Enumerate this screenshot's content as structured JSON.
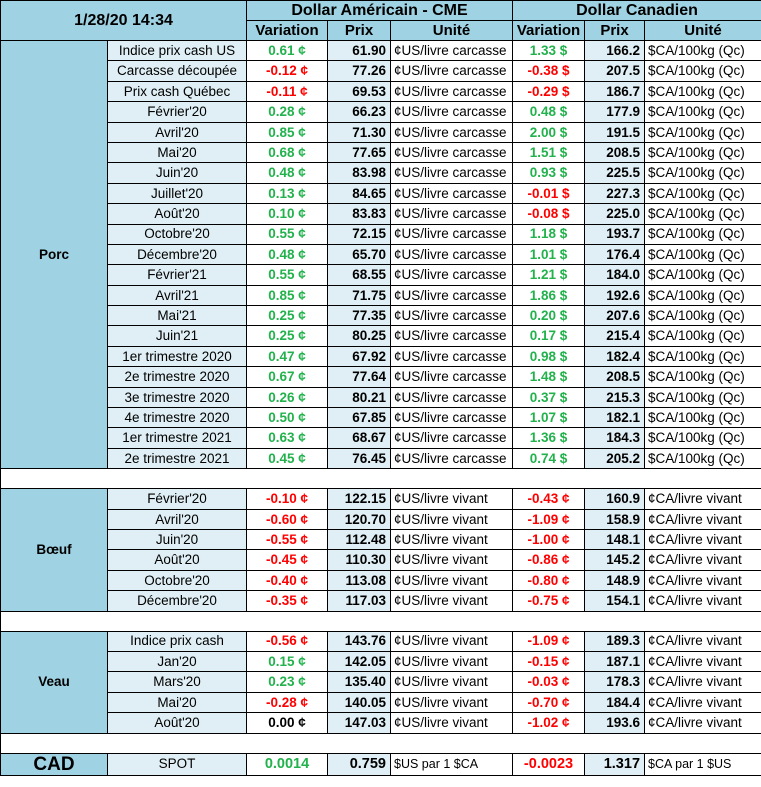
{
  "header": {
    "timestamp": "1/28/20 14:34",
    "us_title": "Dollar Américain - CME",
    "ca_title": "Dollar Canadien",
    "col_variation": "Variation",
    "col_prix": "Prix",
    "col_unite": "Unité"
  },
  "colors": {
    "header_blue": "#9fd2e2",
    "row_light": "#dfeff5",
    "positive": "#22b24c",
    "negative": "#ff0000"
  },
  "sections": [
    {
      "name": "Porc",
      "rows": [
        {
          "label": "Indice prix cash US",
          "us_var": "0.61 ¢",
          "us_sign": "pos",
          "us_price": "61.90",
          "us_unit": "¢US/livre carcasse",
          "ca_var": "1.33 $",
          "ca_sign": "pos",
          "ca_price": "166.2",
          "ca_unit": "$CA/100kg (Qc)"
        },
        {
          "label": "Carcasse découpée",
          "us_var": "-0.12 ¢",
          "us_sign": "neg",
          "us_price": "77.26",
          "us_unit": "¢US/livre carcasse",
          "ca_var": "-0.38 $",
          "ca_sign": "neg",
          "ca_price": "207.5",
          "ca_unit": "$CA/100kg (Qc)"
        },
        {
          "label": "Prix cash Québec",
          "us_var": "-0.11 ¢",
          "us_sign": "neg",
          "us_price": "69.53",
          "us_unit": "¢US/livre carcasse",
          "ca_var": "-0.29 $",
          "ca_sign": "neg",
          "ca_price": "186.7",
          "ca_unit": "$CA/100kg (Qc)"
        },
        {
          "label": "Février'20",
          "us_var": "0.28 ¢",
          "us_sign": "pos",
          "us_price": "66.23",
          "us_unit": "¢US/livre carcasse",
          "ca_var": "0.48 $",
          "ca_sign": "pos",
          "ca_price": "177.9",
          "ca_unit": "$CA/100kg (Qc)"
        },
        {
          "label": "Avril'20",
          "us_var": "0.85 ¢",
          "us_sign": "pos",
          "us_price": "71.30",
          "us_unit": "¢US/livre carcasse",
          "ca_var": "2.00 $",
          "ca_sign": "pos",
          "ca_price": "191.5",
          "ca_unit": "$CA/100kg (Qc)"
        },
        {
          "label": "Mai'20",
          "us_var": "0.68 ¢",
          "us_sign": "pos",
          "us_price": "77.65",
          "us_unit": "¢US/livre carcasse",
          "ca_var": "1.51 $",
          "ca_sign": "pos",
          "ca_price": "208.5",
          "ca_unit": "$CA/100kg (Qc)"
        },
        {
          "label": "Juin'20",
          "us_var": "0.48 ¢",
          "us_sign": "pos",
          "us_price": "83.98",
          "us_unit": "¢US/livre carcasse",
          "ca_var": "0.93 $",
          "ca_sign": "pos",
          "ca_price": "225.5",
          "ca_unit": "$CA/100kg (Qc)"
        },
        {
          "label": "Juillet'20",
          "us_var": "0.13 ¢",
          "us_sign": "pos",
          "us_price": "84.65",
          "us_unit": "¢US/livre carcasse",
          "ca_var": "-0.01 $",
          "ca_sign": "neg",
          "ca_price": "227.3",
          "ca_unit": "$CA/100kg (Qc)"
        },
        {
          "label": "Août'20",
          "us_var": "0.10 ¢",
          "us_sign": "pos",
          "us_price": "83.83",
          "us_unit": "¢US/livre carcasse",
          "ca_var": "-0.08 $",
          "ca_sign": "neg",
          "ca_price": "225.0",
          "ca_unit": "$CA/100kg (Qc)"
        },
        {
          "label": "Octobre'20",
          "us_var": "0.55 ¢",
          "us_sign": "pos",
          "us_price": "72.15",
          "us_unit": "¢US/livre carcasse",
          "ca_var": "1.18 $",
          "ca_sign": "pos",
          "ca_price": "193.7",
          "ca_unit": "$CA/100kg (Qc)"
        },
        {
          "label": "Décembre'20",
          "us_var": "0.48 ¢",
          "us_sign": "pos",
          "us_price": "65.70",
          "us_unit": "¢US/livre carcasse",
          "ca_var": "1.01 $",
          "ca_sign": "pos",
          "ca_price": "176.4",
          "ca_unit": "$CA/100kg (Qc)"
        },
        {
          "label": "Février'21",
          "us_var": "0.55 ¢",
          "us_sign": "pos",
          "us_price": "68.55",
          "us_unit": "¢US/livre carcasse",
          "ca_var": "1.21 $",
          "ca_sign": "pos",
          "ca_price": "184.0",
          "ca_unit": "$CA/100kg (Qc)"
        },
        {
          "label": "Avril'21",
          "us_var": "0.85 ¢",
          "us_sign": "pos",
          "us_price": "71.75",
          "us_unit": "¢US/livre carcasse",
          "ca_var": "1.86 $",
          "ca_sign": "pos",
          "ca_price": "192.6",
          "ca_unit": "$CA/100kg (Qc)"
        },
        {
          "label": "Mai'21",
          "us_var": "0.25 ¢",
          "us_sign": "pos",
          "us_price": "77.35",
          "us_unit": "¢US/livre carcasse",
          "ca_var": "0.20 $",
          "ca_sign": "pos",
          "ca_price": "207.6",
          "ca_unit": "$CA/100kg (Qc)"
        },
        {
          "label": "Juin'21",
          "us_var": "0.25 ¢",
          "us_sign": "pos",
          "us_price": "80.25",
          "us_unit": "¢US/livre carcasse",
          "ca_var": "0.17 $",
          "ca_sign": "pos",
          "ca_price": "215.4",
          "ca_unit": "$CA/100kg (Qc)"
        },
        {
          "label": "1er trimestre 2020",
          "us_var": "0.47 ¢",
          "us_sign": "pos",
          "us_price": "67.92",
          "us_unit": "¢US/livre carcasse",
          "ca_var": "0.98 $",
          "ca_sign": "pos",
          "ca_price": "182.4",
          "ca_unit": "$CA/100kg (Qc)"
        },
        {
          "label": "2e trimestre 2020",
          "us_var": "0.67 ¢",
          "us_sign": "pos",
          "us_price": "77.64",
          "us_unit": "¢US/livre carcasse",
          "ca_var": "1.48 $",
          "ca_sign": "pos",
          "ca_price": "208.5",
          "ca_unit": "$CA/100kg (Qc)"
        },
        {
          "label": "3e trimestre 2020",
          "us_var": "0.26 ¢",
          "us_sign": "pos",
          "us_price": "80.21",
          "us_unit": "¢US/livre carcasse",
          "ca_var": "0.37 $",
          "ca_sign": "pos",
          "ca_price": "215.3",
          "ca_unit": "$CA/100kg (Qc)"
        },
        {
          "label": "4e trimestre 2020",
          "us_var": "0.50 ¢",
          "us_sign": "pos",
          "us_price": "67.85",
          "us_unit": "¢US/livre carcasse",
          "ca_var": "1.07 $",
          "ca_sign": "pos",
          "ca_price": "182.1",
          "ca_unit": "$CA/100kg (Qc)"
        },
        {
          "label": "1er trimestre 2021",
          "us_var": "0.63 ¢",
          "us_sign": "pos",
          "us_price": "68.67",
          "us_unit": "¢US/livre carcasse",
          "ca_var": "1.36 $",
          "ca_sign": "pos",
          "ca_price": "184.3",
          "ca_unit": "$CA/100kg (Qc)"
        },
        {
          "label": "2e trimestre 2021",
          "us_var": "0.45 ¢",
          "us_sign": "pos",
          "us_price": "76.45",
          "us_unit": "¢US/livre carcasse",
          "ca_var": "0.74 $",
          "ca_sign": "pos",
          "ca_price": "205.2",
          "ca_unit": "$CA/100kg (Qc)"
        }
      ]
    },
    {
      "name": "Bœuf",
      "rows": [
        {
          "label": "Février'20",
          "us_var": "-0.10 ¢",
          "us_sign": "neg",
          "us_price": "122.15",
          "us_unit": "¢US/livre vivant",
          "ca_var": "-0.43 ¢",
          "ca_sign": "neg",
          "ca_price": "160.9",
          "ca_unit": "¢CA/livre vivant"
        },
        {
          "label": "Avril'20",
          "us_var": "-0.60 ¢",
          "us_sign": "neg",
          "us_price": "120.70",
          "us_unit": "¢US/livre vivant",
          "ca_var": "-1.09 ¢",
          "ca_sign": "neg",
          "ca_price": "158.9",
          "ca_unit": "¢CA/livre vivant"
        },
        {
          "label": "Juin'20",
          "us_var": "-0.55 ¢",
          "us_sign": "neg",
          "us_price": "112.48",
          "us_unit": "¢US/livre vivant",
          "ca_var": "-1.00 ¢",
          "ca_sign": "neg",
          "ca_price": "148.1",
          "ca_unit": "¢CA/livre vivant"
        },
        {
          "label": "Août'20",
          "us_var": "-0.45 ¢",
          "us_sign": "neg",
          "us_price": "110.30",
          "us_unit": "¢US/livre vivant",
          "ca_var": "-0.86 ¢",
          "ca_sign": "neg",
          "ca_price": "145.2",
          "ca_unit": "¢CA/livre vivant"
        },
        {
          "label": "Octobre'20",
          "us_var": "-0.40 ¢",
          "us_sign": "neg",
          "us_price": "113.08",
          "us_unit": "¢US/livre vivant",
          "ca_var": "-0.80 ¢",
          "ca_sign": "neg",
          "ca_price": "148.9",
          "ca_unit": "¢CA/livre vivant"
        },
        {
          "label": "Décembre'20",
          "us_var": "-0.35 ¢",
          "us_sign": "neg",
          "us_price": "117.03",
          "us_unit": "¢US/livre vivant",
          "ca_var": "-0.75 ¢",
          "ca_sign": "neg",
          "ca_price": "154.1",
          "ca_unit": "¢CA/livre vivant"
        }
      ]
    },
    {
      "name": "Veau",
      "rows": [
        {
          "label": "Indice prix cash",
          "us_var": "-0.56 ¢",
          "us_sign": "neg",
          "us_price": "143.76",
          "us_unit": "¢US/livre vivant",
          "ca_var": "-1.09 ¢",
          "ca_sign": "neg",
          "ca_price": "189.3",
          "ca_unit": "¢CA/livre vivant"
        },
        {
          "label": "Jan'20",
          "us_var": "0.15 ¢",
          "us_sign": "pos",
          "us_price": "142.05",
          "us_unit": "¢US/livre vivant",
          "ca_var": "-0.15 ¢",
          "ca_sign": "neg",
          "ca_price": "187.1",
          "ca_unit": "¢CA/livre vivant"
        },
        {
          "label": "Mars'20",
          "us_var": "0.23 ¢",
          "us_sign": "pos",
          "us_price": "135.40",
          "us_unit": "¢US/livre vivant",
          "ca_var": "-0.03 ¢",
          "ca_sign": "neg",
          "ca_price": "178.3",
          "ca_unit": "¢CA/livre vivant"
        },
        {
          "label": "Mai'20",
          "us_var": "-0.28 ¢",
          "us_sign": "neg",
          "us_price": "140.05",
          "us_unit": "¢US/livre vivant",
          "ca_var": "-0.70 ¢",
          "ca_sign": "neg",
          "ca_price": "184.4",
          "ca_unit": "¢CA/livre vivant"
        },
        {
          "label": "Août'20",
          "us_var": "0.00 ¢",
          "us_sign": "zero",
          "us_price": "147.03",
          "us_unit": "¢US/livre vivant",
          "ca_var": "-1.02 ¢",
          "ca_sign": "neg",
          "ca_price": "193.6",
          "ca_unit": "¢CA/livre vivant"
        }
      ]
    }
  ],
  "cad": {
    "name": "CAD",
    "label": "SPOT",
    "us_var": "0.0014",
    "us_sign": "pos",
    "us_price": "0.759",
    "us_unit": "$US par 1 $CA",
    "ca_var": "-0.0023",
    "ca_sign": "neg",
    "ca_price": "1.317",
    "ca_unit": "$CA par 1 $US"
  }
}
